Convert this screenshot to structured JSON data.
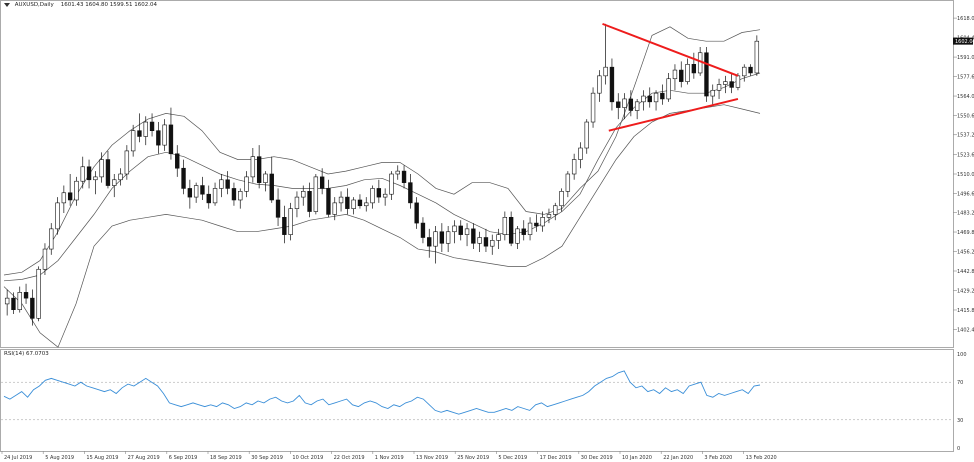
{
  "header": {
    "symbol": "AUXUSD,Daily",
    "ohlc": "1601.43 1604.80 1599.51 1602.04"
  },
  "rsi_label": "RSI(14) 67.0703",
  "chart_data": [
    {
      "type": "candlestick",
      "title": "AUXUSD,Daily",
      "last_price": "1602.04",
      "ylim": [
        1395,
        1625
      ],
      "y_ticks": [
        "1618.00",
        "1604.40",
        "1591.00",
        "1577.60",
        "1564.00",
        "1550.60",
        "1537.20",
        "1523.60",
        "1510.00",
        "1496.60",
        "1483.20",
        "1469.80",
        "1456.20",
        "1442.80",
        "1429.20",
        "1415.80",
        "1402.40"
      ],
      "x_ticks": [
        "24 Jul 2019",
        "5 Aug 2019",
        "15 Aug 2019",
        "27 Aug 2019",
        "6 Sep 2019",
        "18 Sep 2019",
        "30 Sep 2019",
        "10 Oct 2019",
        "22 Oct 2019",
        "1 Nov 2019",
        "13 Nov 2019",
        "25 Nov 2019",
        "5 Dec 2019",
        "17 Dec 2019",
        "30 Dec 2019",
        "10 Jan 2020",
        "22 Jan 2020",
        "3 Feb 2020",
        "13 Feb 2020"
      ],
      "candles": [
        {
          "o": 1420,
          "h": 1430,
          "l": 1412,
          "c": 1424
        },
        {
          "o": 1424,
          "h": 1428,
          "l": 1413,
          "c": 1416
        },
        {
          "o": 1416,
          "h": 1432,
          "l": 1414,
          "c": 1428
        },
        {
          "o": 1428,
          "h": 1434,
          "l": 1420,
          "c": 1424
        },
        {
          "o": 1424,
          "h": 1430,
          "l": 1405,
          "c": 1410
        },
        {
          "o": 1410,
          "h": 1446,
          "l": 1408,
          "c": 1444
        },
        {
          "o": 1444,
          "h": 1462,
          "l": 1440,
          "c": 1458
        },
        {
          "o": 1458,
          "h": 1476,
          "l": 1454,
          "c": 1472
        },
        {
          "o": 1472,
          "h": 1494,
          "l": 1468,
          "c": 1490
        },
        {
          "o": 1490,
          "h": 1502,
          "l": 1483,
          "c": 1497
        },
        {
          "o": 1497,
          "h": 1510,
          "l": 1488,
          "c": 1492
        },
        {
          "o": 1492,
          "h": 1508,
          "l": 1488,
          "c": 1505
        },
        {
          "o": 1505,
          "h": 1522,
          "l": 1500,
          "c": 1515
        },
        {
          "o": 1515,
          "h": 1520,
          "l": 1500,
          "c": 1506
        },
        {
          "o": 1506,
          "h": 1512,
          "l": 1496,
          "c": 1508
        },
        {
          "o": 1508,
          "h": 1525,
          "l": 1504,
          "c": 1520
        },
        {
          "o": 1520,
          "h": 1526,
          "l": 1500,
          "c": 1502
        },
        {
          "o": 1502,
          "h": 1510,
          "l": 1494,
          "c": 1506
        },
        {
          "o": 1506,
          "h": 1514,
          "l": 1502,
          "c": 1510
        },
        {
          "o": 1510,
          "h": 1530,
          "l": 1506,
          "c": 1526
        },
        {
          "o": 1526,
          "h": 1544,
          "l": 1522,
          "c": 1540
        },
        {
          "o": 1540,
          "h": 1552,
          "l": 1532,
          "c": 1536
        },
        {
          "o": 1536,
          "h": 1550,
          "l": 1530,
          "c": 1546
        },
        {
          "o": 1546,
          "h": 1552,
          "l": 1536,
          "c": 1540
        },
        {
          "o": 1540,
          "h": 1546,
          "l": 1524,
          "c": 1530
        },
        {
          "o": 1530,
          "h": 1548,
          "l": 1526,
          "c": 1544
        },
        {
          "o": 1544,
          "h": 1556,
          "l": 1520,
          "c": 1524
        },
        {
          "o": 1524,
          "h": 1530,
          "l": 1508,
          "c": 1514
        },
        {
          "o": 1514,
          "h": 1520,
          "l": 1496,
          "c": 1500
        },
        {
          "o": 1500,
          "h": 1506,
          "l": 1486,
          "c": 1494
        },
        {
          "o": 1494,
          "h": 1504,
          "l": 1490,
          "c": 1502
        },
        {
          "o": 1502,
          "h": 1508,
          "l": 1492,
          "c": 1496
        },
        {
          "o": 1496,
          "h": 1502,
          "l": 1486,
          "c": 1490
        },
        {
          "o": 1490,
          "h": 1504,
          "l": 1488,
          "c": 1500
        },
        {
          "o": 1500,
          "h": 1510,
          "l": 1494,
          "c": 1506
        },
        {
          "o": 1506,
          "h": 1512,
          "l": 1496,
          "c": 1500
        },
        {
          "o": 1500,
          "h": 1504,
          "l": 1488,
          "c": 1492
        },
        {
          "o": 1492,
          "h": 1500,
          "l": 1486,
          "c": 1498
        },
        {
          "o": 1498,
          "h": 1512,
          "l": 1494,
          "c": 1508
        },
        {
          "o": 1508,
          "h": 1528,
          "l": 1504,
          "c": 1522
        },
        {
          "o": 1522,
          "h": 1530,
          "l": 1500,
          "c": 1504
        },
        {
          "o": 1504,
          "h": 1512,
          "l": 1498,
          "c": 1510
        },
        {
          "o": 1510,
          "h": 1522,
          "l": 1490,
          "c": 1492
        },
        {
          "o": 1492,
          "h": 1500,
          "l": 1474,
          "c": 1480
        },
        {
          "o": 1480,
          "h": 1488,
          "l": 1462,
          "c": 1468
        },
        {
          "o": 1468,
          "h": 1490,
          "l": 1464,
          "c": 1486
        },
        {
          "o": 1486,
          "h": 1498,
          "l": 1480,
          "c": 1494
        },
        {
          "o": 1494,
          "h": 1502,
          "l": 1488,
          "c": 1498
        },
        {
          "o": 1498,
          "h": 1504,
          "l": 1480,
          "c": 1484
        },
        {
          "o": 1484,
          "h": 1510,
          "l": 1482,
          "c": 1508
        },
        {
          "o": 1508,
          "h": 1514,
          "l": 1496,
          "c": 1500
        },
        {
          "o": 1500,
          "h": 1506,
          "l": 1480,
          "c": 1482
        },
        {
          "o": 1482,
          "h": 1494,
          "l": 1478,
          "c": 1490
        },
        {
          "o": 1490,
          "h": 1498,
          "l": 1484,
          "c": 1494
        },
        {
          "o": 1494,
          "h": 1500,
          "l": 1482,
          "c": 1486
        },
        {
          "o": 1486,
          "h": 1494,
          "l": 1482,
          "c": 1492
        },
        {
          "o": 1492,
          "h": 1496,
          "l": 1486,
          "c": 1488
        },
        {
          "o": 1488,
          "h": 1494,
          "l": 1484,
          "c": 1490
        },
        {
          "o": 1490,
          "h": 1502,
          "l": 1486,
          "c": 1500
        },
        {
          "o": 1500,
          "h": 1506,
          "l": 1490,
          "c": 1494
        },
        {
          "o": 1494,
          "h": 1500,
          "l": 1488,
          "c": 1496
        },
        {
          "o": 1496,
          "h": 1512,
          "l": 1492,
          "c": 1510
        },
        {
          "o": 1510,
          "h": 1516,
          "l": 1506,
          "c": 1512
        },
        {
          "o": 1512,
          "h": 1516,
          "l": 1500,
          "c": 1504
        },
        {
          "o": 1504,
          "h": 1510,
          "l": 1486,
          "c": 1490
        },
        {
          "o": 1490,
          "h": 1494,
          "l": 1472,
          "c": 1476
        },
        {
          "o": 1476,
          "h": 1480,
          "l": 1462,
          "c": 1466
        },
        {
          "o": 1466,
          "h": 1472,
          "l": 1452,
          "c": 1460
        },
        {
          "o": 1460,
          "h": 1474,
          "l": 1448,
          "c": 1470
        },
        {
          "o": 1470,
          "h": 1476,
          "l": 1456,
          "c": 1462
        },
        {
          "o": 1462,
          "h": 1474,
          "l": 1456,
          "c": 1470
        },
        {
          "o": 1470,
          "h": 1478,
          "l": 1462,
          "c": 1474
        },
        {
          "o": 1474,
          "h": 1478,
          "l": 1464,
          "c": 1468
        },
        {
          "o": 1468,
          "h": 1476,
          "l": 1460,
          "c": 1472
        },
        {
          "o": 1472,
          "h": 1476,
          "l": 1458,
          "c": 1462
        },
        {
          "o": 1462,
          "h": 1470,
          "l": 1456,
          "c": 1466
        },
        {
          "o": 1466,
          "h": 1472,
          "l": 1456,
          "c": 1460
        },
        {
          "o": 1460,
          "h": 1468,
          "l": 1454,
          "c": 1464
        },
        {
          "o": 1464,
          "h": 1472,
          "l": 1458,
          "c": 1468
        },
        {
          "o": 1468,
          "h": 1484,
          "l": 1464,
          "c": 1480
        },
        {
          "o": 1480,
          "h": 1484,
          "l": 1460,
          "c": 1462
        },
        {
          "o": 1462,
          "h": 1474,
          "l": 1458,
          "c": 1472
        },
        {
          "o": 1472,
          "h": 1478,
          "l": 1464,
          "c": 1468
        },
        {
          "o": 1468,
          "h": 1480,
          "l": 1464,
          "c": 1476
        },
        {
          "o": 1476,
          "h": 1482,
          "l": 1470,
          "c": 1474
        },
        {
          "o": 1474,
          "h": 1484,
          "l": 1470,
          "c": 1480
        },
        {
          "o": 1480,
          "h": 1486,
          "l": 1476,
          "c": 1482
        },
        {
          "o": 1482,
          "h": 1490,
          "l": 1478,
          "c": 1488
        },
        {
          "o": 1488,
          "h": 1500,
          "l": 1484,
          "c": 1498
        },
        {
          "o": 1498,
          "h": 1512,
          "l": 1494,
          "c": 1510
        },
        {
          "o": 1510,
          "h": 1524,
          "l": 1506,
          "c": 1520
        },
        {
          "o": 1520,
          "h": 1532,
          "l": 1514,
          "c": 1528
        },
        {
          "o": 1528,
          "h": 1548,
          "l": 1524,
          "c": 1546
        },
        {
          "o": 1546,
          "h": 1570,
          "l": 1542,
          "c": 1566
        },
        {
          "o": 1566,
          "h": 1582,
          "l": 1560,
          "c": 1578
        },
        {
          "o": 1578,
          "h": 1614,
          "l": 1572,
          "c": 1584
        },
        {
          "o": 1584,
          "h": 1590,
          "l": 1554,
          "c": 1560
        },
        {
          "o": 1560,
          "h": 1566,
          "l": 1548,
          "c": 1556
        },
        {
          "o": 1556,
          "h": 1566,
          "l": 1548,
          "c": 1562
        },
        {
          "o": 1562,
          "h": 1568,
          "l": 1550,
          "c": 1554
        },
        {
          "o": 1554,
          "h": 1562,
          "l": 1548,
          "c": 1560
        },
        {
          "o": 1560,
          "h": 1568,
          "l": 1554,
          "c": 1564
        },
        {
          "o": 1564,
          "h": 1570,
          "l": 1556,
          "c": 1560
        },
        {
          "o": 1560,
          "h": 1568,
          "l": 1554,
          "c": 1566
        },
        {
          "o": 1566,
          "h": 1572,
          "l": 1558,
          "c": 1562
        },
        {
          "o": 1562,
          "h": 1580,
          "l": 1560,
          "c": 1576
        },
        {
          "o": 1576,
          "h": 1586,
          "l": 1568,
          "c": 1582
        },
        {
          "o": 1582,
          "h": 1588,
          "l": 1570,
          "c": 1574
        },
        {
          "o": 1574,
          "h": 1590,
          "l": 1572,
          "c": 1586
        },
        {
          "o": 1586,
          "h": 1594,
          "l": 1576,
          "c": 1580
        },
        {
          "o": 1580,
          "h": 1598,
          "l": 1578,
          "c": 1594
        },
        {
          "o": 1594,
          "h": 1598,
          "l": 1560,
          "c": 1564
        },
        {
          "o": 1564,
          "h": 1572,
          "l": 1558,
          "c": 1568
        },
        {
          "o": 1568,
          "h": 1576,
          "l": 1562,
          "c": 1572
        },
        {
          "o": 1572,
          "h": 1578,
          "l": 1566,
          "c": 1574
        },
        {
          "o": 1574,
          "h": 1580,
          "l": 1566,
          "c": 1570
        },
        {
          "o": 1570,
          "h": 1580,
          "l": 1568,
          "c": 1578
        },
        {
          "o": 1578,
          "h": 1586,
          "l": 1574,
          "c": 1584
        },
        {
          "o": 1584,
          "h": 1586,
          "l": 1578,
          "c": 1580
        },
        {
          "o": 1580,
          "h": 1606,
          "l": 1578,
          "c": 1602
        }
      ],
      "bollinger": {
        "upper": [
          1440,
          1442,
          1450,
          1470,
          1495,
          1515,
          1530,
          1540,
          1548,
          1552,
          1550,
          1540,
          1525,
          1520,
          1520,
          1522,
          1520,
          1515,
          1510,
          1512,
          1515,
          1518,
          1518,
          1510,
          1500,
          1496,
          1504,
          1504,
          1500,
          1484,
          1482,
          1486,
          1500,
          1512,
          1536,
          1570,
          1606,
          1612,
          1604,
          1602,
          1602,
          1608,
          1610
        ],
        "middle": [
          1436,
          1437,
          1440,
          1450,
          1466,
          1482,
          1500,
          1512,
          1522,
          1525,
          1522,
          1516,
          1510,
          1506,
          1503,
          1502,
          1500,
          1500,
          1500,
          1502,
          1506,
          1507,
          1502,
          1496,
          1490,
          1482,
          1476,
          1470,
          1468,
          1470,
          1476,
          1484,
          1496,
          1520,
          1542,
          1556,
          1566,
          1568,
          1566,
          1566,
          1570,
          1576,
          1580
        ],
        "lower": [
          1432,
          1420,
          1400,
          1390,
          1420,
          1460,
          1474,
          1478,
          1480,
          1482,
          1480,
          1478,
          1474,
          1470,
          1470,
          1472,
          1474,
          1478,
          1480,
          1482,
          1478,
          1472,
          1466,
          1458,
          1456,
          1452,
          1450,
          1448,
          1446,
          1446,
          1452,
          1460,
          1480,
          1500,
          1520,
          1536,
          1546,
          1552,
          1554,
          1556,
          1558,
          1555,
          1552
        ],
        "samples": 43
      },
      "trendlines": [
        {
          "from": [
            94.5,
            1614
          ],
          "to": [
            116,
            1578
          ]
        },
        {
          "from": [
            95.5,
            1540
          ],
          "to": [
            116,
            1562
          ]
        }
      ]
    },
    {
      "type": "line",
      "title": "RSI(14)",
      "ylim": [
        0,
        100
      ],
      "y_ticks": [
        "100",
        "70",
        "30",
        "0"
      ],
      "series": [
        {
          "name": "RSI(14)",
          "color": "#3b8fd8",
          "values": [
            55,
            52,
            56,
            60,
            54,
            62,
            66,
            72,
            74,
            72,
            70,
            68,
            66,
            70,
            66,
            64,
            62,
            60,
            62,
            58,
            64,
            68,
            66,
            70,
            74,
            70,
            66,
            58,
            48,
            46,
            44,
            46,
            48,
            46,
            44,
            46,
            44,
            48,
            46,
            42,
            44,
            48,
            46,
            50,
            48,
            52,
            54,
            50,
            48,
            50,
            56,
            48,
            46,
            50,
            52,
            46,
            48,
            50,
            52,
            46,
            44,
            48,
            50,
            48,
            44,
            42,
            46,
            44,
            48,
            50,
            54,
            52,
            46,
            40,
            38,
            40,
            38,
            36,
            38,
            40,
            42,
            40,
            38,
            38,
            40,
            42,
            40,
            44,
            42,
            40,
            46,
            48,
            44,
            46,
            48,
            50,
            52,
            54,
            56,
            60,
            66,
            70,
            74,
            76,
            80,
            82,
            70,
            64,
            66,
            60,
            62,
            58,
            64,
            60,
            62,
            58,
            66,
            68,
            70,
            56,
            54,
            58,
            56,
            58,
            60,
            62,
            58,
            66,
            67
          ]
        }
      ]
    }
  ]
}
